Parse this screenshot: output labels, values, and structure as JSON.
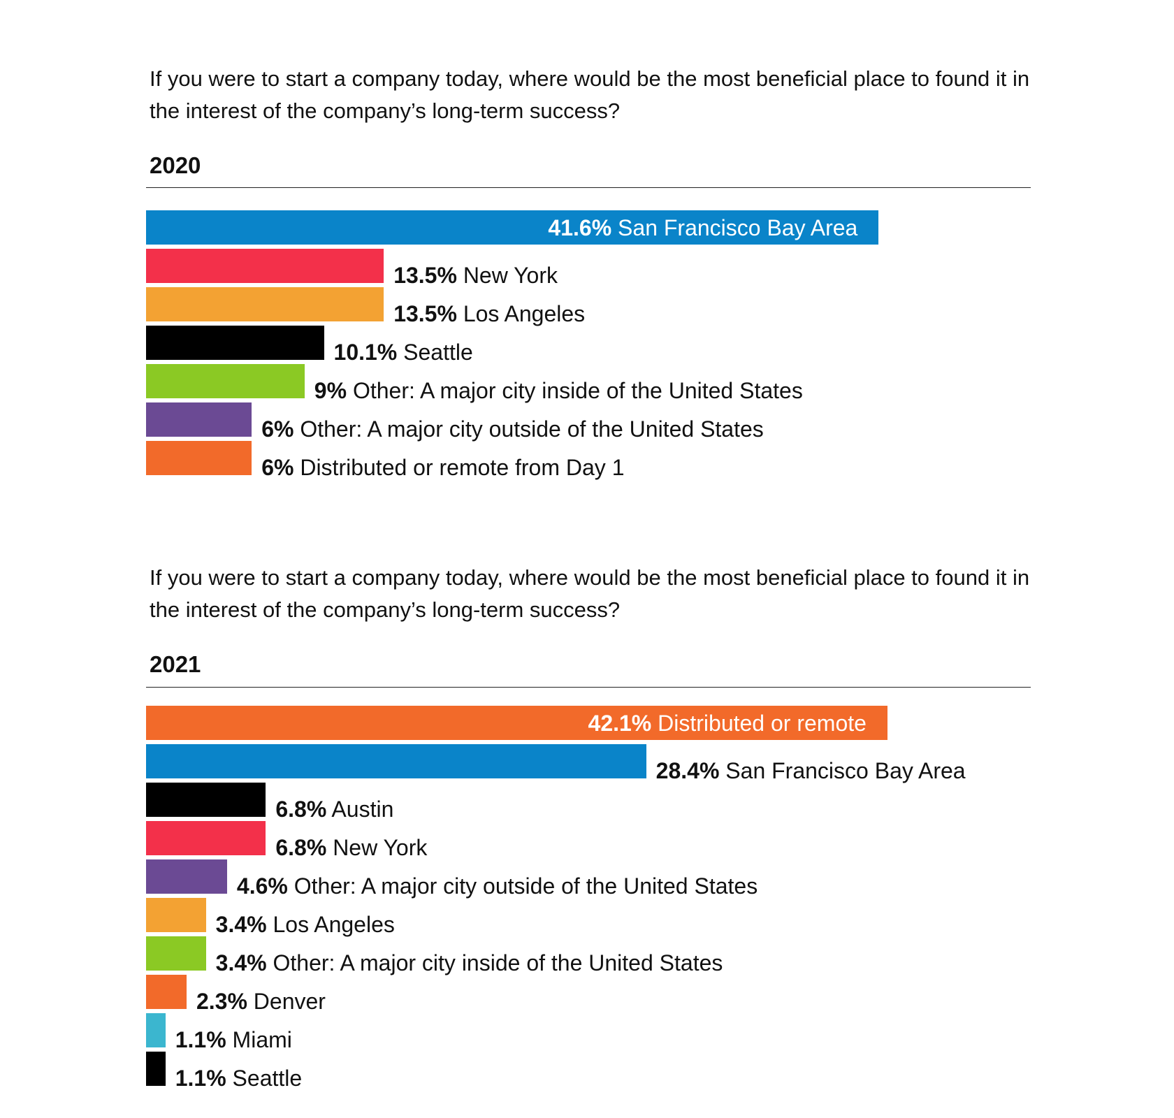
{
  "chart_data": [
    {
      "type": "bar",
      "orientation": "horizontal",
      "title": "If you were to start a company today, where would be the most beneficial place to found it in the interest of the company’s long-term success?",
      "subtitle": "2020",
      "categories": [
        "San Francisco Bay Area",
        "New York",
        "Los Angeles",
        "Seattle",
        "Other: A major city inside of the United States",
        "Other: A major city outside of the United States",
        "Distributed or remote from Day 1"
      ],
      "values": [
        41.6,
        13.5,
        13.5,
        10.1,
        9,
        6,
        6
      ],
      "value_labels": [
        "41.6%",
        "13.5%",
        "13.5%",
        "10.1%",
        "9%",
        "6%",
        "6%"
      ],
      "colors": [
        "#0a84c9",
        "#f3304a",
        "#f3a233",
        "#000000",
        "#8bc924",
        "#6b4a94",
        "#f26a2a"
      ],
      "xlim": [
        0,
        45
      ],
      "grid": false
    },
    {
      "type": "bar",
      "orientation": "horizontal",
      "title": "If you were to start a company today, where would be the most beneficial place to found it in the interest of the company’s long-term success?",
      "subtitle": "2021",
      "categories": [
        "Distributed or remote",
        "San Francisco Bay Area",
        "Austin",
        "New York",
        "Other: A major city outside of the United States",
        "Los Angeles",
        "Other: A major city inside of the United States",
        "Denver",
        "Miami",
        "Seattle"
      ],
      "values": [
        42.1,
        28.4,
        6.8,
        6.8,
        4.6,
        3.4,
        3.4,
        2.3,
        1.1,
        1.1
      ],
      "value_labels": [
        "42.1%",
        "28.4%",
        "6.8%",
        "6.8%",
        "4.6%",
        "3.4%",
        "3.4%",
        "2.3%",
        "1.1%",
        "1.1%"
      ],
      "colors": [
        "#f26a2a",
        "#0a84c9",
        "#000000",
        "#f3304a",
        "#6b4a94",
        "#f3a233",
        "#8bc924",
        "#f26a2a",
        "#3bb6cf",
        "#000000"
      ],
      "xlim": [
        0,
        45
      ],
      "grid": false
    }
  ]
}
